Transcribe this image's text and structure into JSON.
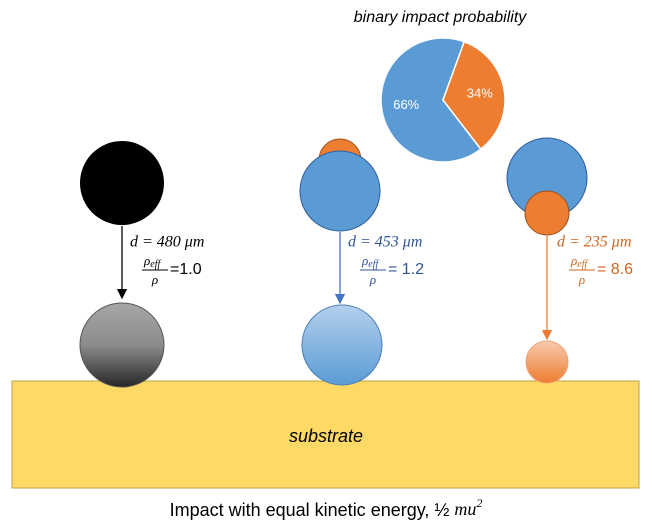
{
  "pie": {
    "type": "pie",
    "title": "binary impact probability",
    "values": [
      66,
      34
    ],
    "value_labels": [
      "66%",
      "34%"
    ],
    "colors": [
      "#5b9bd5",
      "#ed7d31"
    ]
  },
  "fraction": {
    "numerator": "ρ",
    "subscript": "eff",
    "denominator": "ρ"
  },
  "droplets": [
    {
      "diameter": "d = 480 μm",
      "ratio": "=1.0"
    },
    {
      "diameter": "d = 453 μm",
      "ratio": "= 1.2"
    },
    {
      "diameter": "d = 235 μm",
      "ratio": "= 8.6"
    }
  ],
  "substrate": "substrate",
  "caption": {
    "text": "Impact with equal kinetic energy, ½ ",
    "math": "mu",
    "exponent": "2"
  }
}
